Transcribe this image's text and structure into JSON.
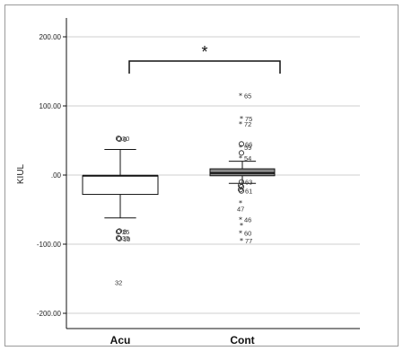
{
  "chart_data": {
    "type": "boxplot",
    "ylabel": "KIUL",
    "ylim": [
      -220,
      200
    ],
    "yticks": [
      {
        "value": 200,
        "label": "200.00"
      },
      {
        "value": 100,
        "label": "100.00"
      },
      {
        "value": 0,
        "label": ".00"
      },
      {
        "value": -100,
        "label": "-100.00"
      },
      {
        "value": -200,
        "label": "-200.00"
      }
    ],
    "grid": true,
    "categories": [
      "Acu",
      "Cont"
    ],
    "boxes": [
      {
        "category": "Acu",
        "whisker_low": -62,
        "q1": -28,
        "median": -1,
        "q3": -1,
        "whisker_high": 37,
        "outliers": [
          {
            "label": "20",
            "value": 53,
            "marker": "circle"
          },
          {
            "label": "9",
            "value": 52,
            "marker": "circle"
          },
          {
            "label": "25",
            "value": -82,
            "marker": "circle"
          },
          {
            "label": "6",
            "value": -81,
            "marker": "circle"
          },
          {
            "label": "35",
            "value": -91,
            "marker": "circle"
          },
          {
            "label": "10",
            "value": -92,
            "marker": "circle"
          },
          {
            "label": "32",
            "value": -155,
            "marker": "none"
          }
        ]
      },
      {
        "category": "Cont",
        "whisker_low": -12,
        "q1": -1,
        "median": 3,
        "q3": 9,
        "whisker_high": 20,
        "outliers": [
          {
            "label": "65",
            "value": 115,
            "marker": "star"
          },
          {
            "label": "75",
            "value": 82,
            "marker": "star"
          },
          {
            "label": "72",
            "value": 74,
            "marker": "star"
          },
          {
            "label": "66",
            "value": 45,
            "marker": "circle"
          },
          {
            "label": "59",
            "value": 40,
            "marker": "star"
          },
          {
            "label": "",
            "value": 32,
            "marker": "circle"
          },
          {
            "label": "54",
            "value": 25,
            "marker": "star"
          },
          {
            "label": "63",
            "value": -10,
            "marker": "circle"
          },
          {
            "label": "",
            "value": -15,
            "marker": "circle"
          },
          {
            "label": "",
            "value": -17,
            "marker": "circle"
          },
          {
            "label": "",
            "value": -21,
            "marker": "circle"
          },
          {
            "label": "61",
            "value": -23,
            "marker": "circle"
          },
          {
            "label": "",
            "value": -40,
            "marker": "star"
          },
          {
            "label": "47",
            "value": -49,
            "marker": "none"
          },
          {
            "label": "46",
            "value": -64,
            "marker": "star"
          },
          {
            "label": "",
            "value": -73,
            "marker": "star"
          },
          {
            "label": "60",
            "value": -84,
            "marker": "star"
          },
          {
            "label": "77",
            "value": -95,
            "marker": "star"
          }
        ]
      }
    ],
    "annotation": {
      "text": "*",
      "between": [
        "Acu",
        "Cont"
      ],
      "value": 165
    }
  },
  "colors": {
    "acu_box": "#ffffff",
    "cont_box": "#8a8a8a",
    "line": "#111111",
    "grid": "#cfcfcf"
  }
}
